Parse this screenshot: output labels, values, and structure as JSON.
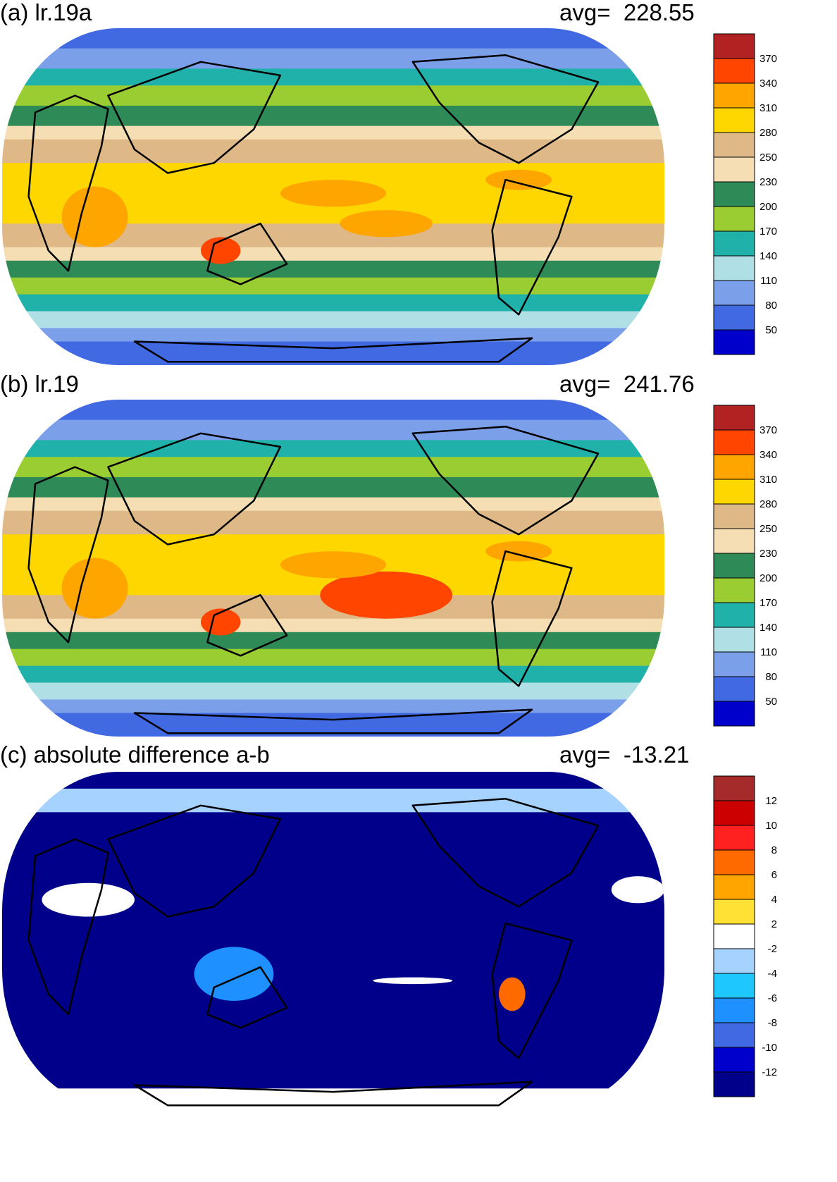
{
  "panels": [
    {
      "id": "a",
      "title": "(a) lr.19a",
      "avg_label": "avg=",
      "avg_value": "228.55",
      "colorbar": {
        "labels": [
          "370",
          "340",
          "310",
          "280",
          "250",
          "230",
          "200",
          "170",
          "140",
          "110",
          "80",
          "50"
        ],
        "colors_top_to_bottom": [
          "#b22222",
          "#ff4500",
          "#ffa500",
          "#ffd700",
          "#deb887",
          "#f5deb3",
          "#2e8b57",
          "#9acd32",
          "#20b2aa",
          "#b0e0e6",
          "#7b9fe8",
          "#4169e1",
          "#0000cd"
        ]
      }
    },
    {
      "id": "b",
      "title": "(b) lr.19",
      "avg_label": "avg=",
      "avg_value": "241.76",
      "colorbar": {
        "labels": [
          "370",
          "340",
          "310",
          "280",
          "250",
          "230",
          "200",
          "170",
          "140",
          "110",
          "80",
          "50"
        ],
        "colors_top_to_bottom": [
          "#b22222",
          "#ff4500",
          "#ffa500",
          "#ffd700",
          "#deb887",
          "#f5deb3",
          "#2e8b57",
          "#9acd32",
          "#20b2aa",
          "#b0e0e6",
          "#7b9fe8",
          "#4169e1",
          "#0000cd"
        ]
      }
    },
    {
      "id": "c",
      "title": "(c) absolute difference a-b",
      "avg_label": "avg=",
      "avg_value": "-13.21",
      "colorbar": {
        "labels": [
          "12",
          "10",
          "8",
          "6",
          "4",
          "2",
          "-2",
          "-4",
          "-6",
          "-8",
          "-10",
          "-12"
        ],
        "colors_top_to_bottom": [
          "#a52a2a",
          "#cc0000",
          "#ff2020",
          "#ff6a00",
          "#ffa500",
          "#ffe135",
          "#ffffff",
          "#a6d2ff",
          "#1ec8ff",
          "#1e90ff",
          "#4169e1",
          "#0000cd",
          "#00008b"
        ]
      }
    }
  ]
}
